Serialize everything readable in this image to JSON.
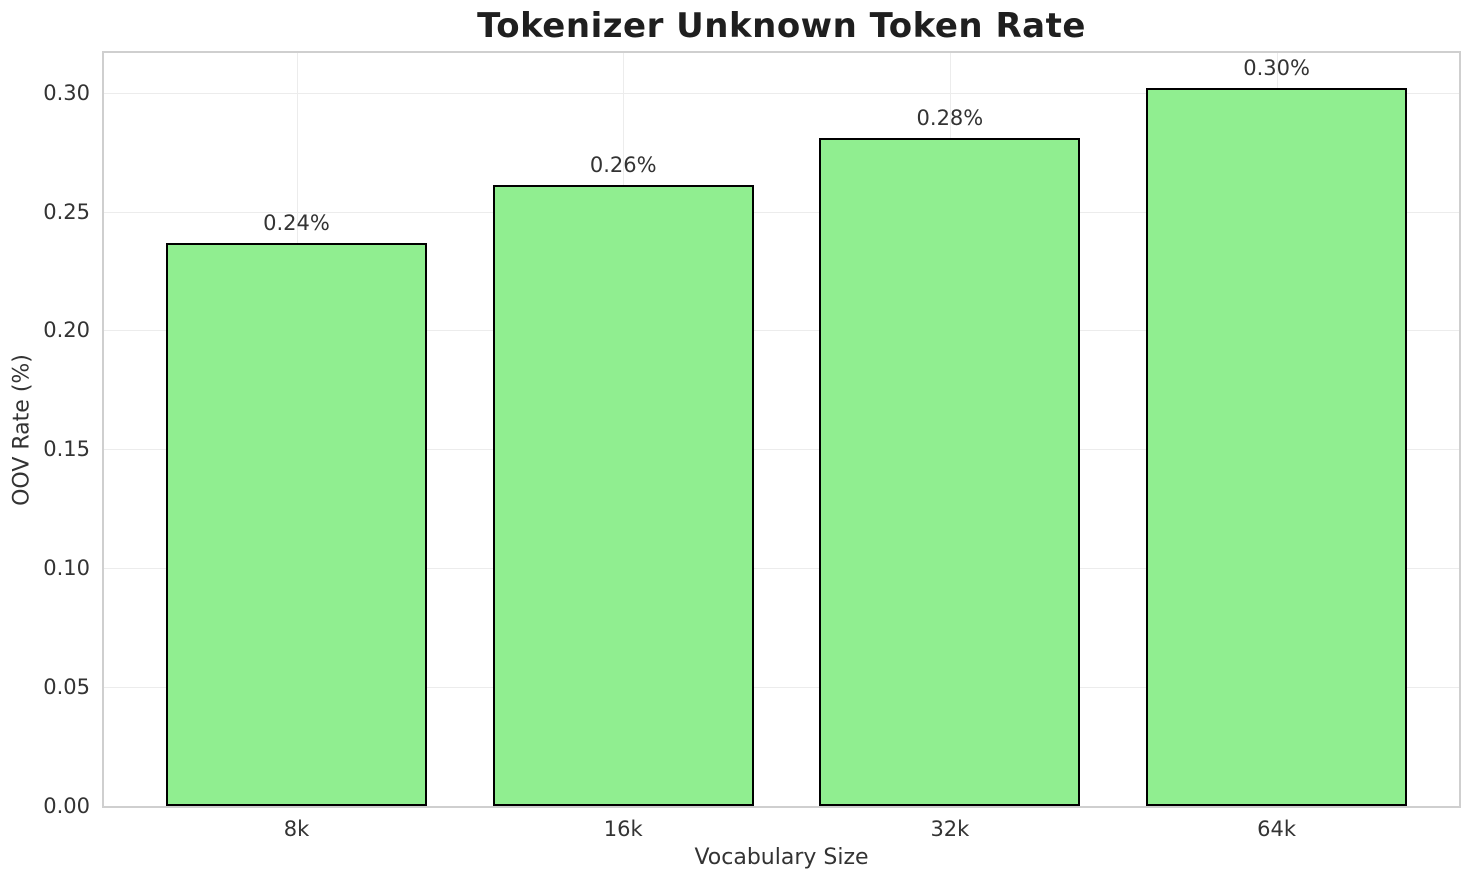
{
  "chart_data": {
    "type": "bar",
    "title": "Tokenizer Unknown Token Rate",
    "xlabel": "Vocabulary Size",
    "ylabel": "OOV Rate (%)",
    "categories": [
      "8k",
      "16k",
      "32k",
      "64k"
    ],
    "values": [
      0.237,
      0.261,
      0.281,
      0.302
    ],
    "bar_labels": [
      "0.24%",
      "0.26%",
      "0.28%",
      "0.30%"
    ],
    "yticks": [
      "0.00",
      "0.05",
      "0.10",
      "0.15",
      "0.20",
      "0.25",
      "0.30"
    ],
    "ylim": [
      0,
      0.3167
    ],
    "grid": "on",
    "legend": "none",
    "bar_color": "#90EE90",
    "bar_edge_color": "#000000"
  },
  "colors": {
    "background": "#FFFFFF",
    "bar_fill": "#90EE90",
    "bar_edge": "#000000",
    "grid_line": "#ECECEC",
    "spine": "#CFCFCF",
    "title_text": "#1F1F1F",
    "tick_text": "#333333"
  }
}
